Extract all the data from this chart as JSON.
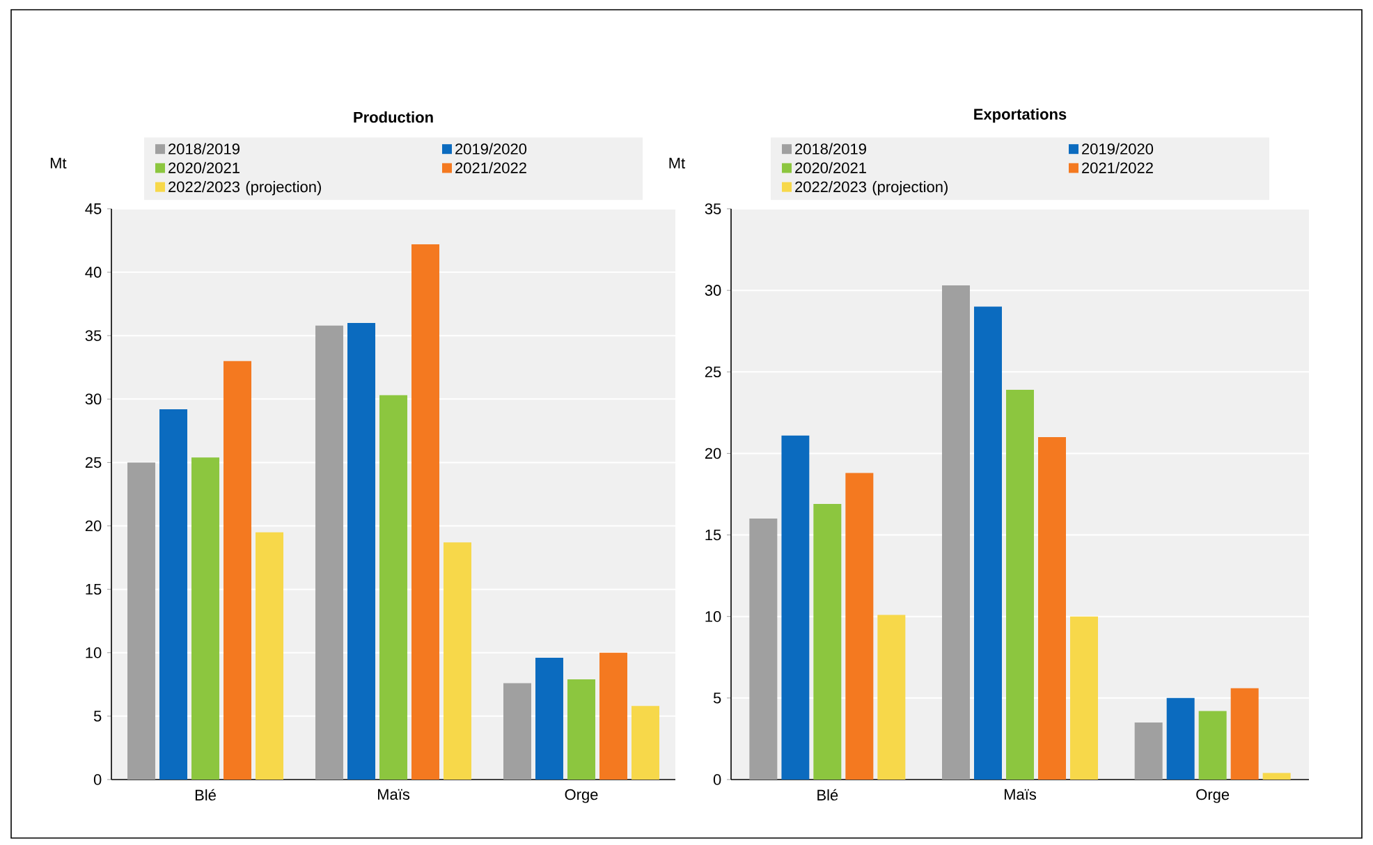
{
  "chart_data": [
    {
      "type": "bar",
      "title": "Production",
      "ylabel": "Mt",
      "categories": [
        "Blé",
        "Maïs",
        "Orge"
      ],
      "ylim": [
        0,
        45
      ],
      "yticks": [
        0,
        5,
        10,
        15,
        20,
        25,
        30,
        35,
        40,
        45
      ],
      "grid": "y",
      "legend": "top",
      "series": [
        {
          "name": "2018/2019",
          "color": "#a0a0a0",
          "values": [
            25,
            35.8,
            7.6
          ]
        },
        {
          "name": "2019/2020",
          "color": "#0b6bbf",
          "values": [
            29.2,
            36,
            9.6
          ]
        },
        {
          "name": "2020/2021",
          "color": "#8cc63f",
          "values": [
            25.4,
            30.3,
            7.9
          ]
        },
        {
          "name": "2021/2022",
          "color": "#f47920",
          "values": [
            33,
            42.2,
            10
          ]
        },
        {
          "name": "2022/2023 (projection)",
          "color": "#f7d84a",
          "values": [
            19.5,
            18.7,
            5.8
          ]
        }
      ]
    },
    {
      "type": "bar",
      "title": "Exportations",
      "ylabel": "Mt",
      "categories": [
        "Blé",
        "Maïs",
        "Orge"
      ],
      "ylim": [
        0,
        35
      ],
      "yticks": [
        0,
        5,
        10,
        15,
        20,
        25,
        30,
        35
      ],
      "grid": "y",
      "legend": "top",
      "series": [
        {
          "name": "2018/2019",
          "color": "#a0a0a0",
          "values": [
            16,
            30.3,
            3.5
          ]
        },
        {
          "name": "2019/2020",
          "color": "#0b6bbf",
          "values": [
            21.1,
            29,
            5
          ]
        },
        {
          "name": "2020/2021",
          "color": "#8cc63f",
          "values": [
            16.9,
            23.9,
            4.2
          ]
        },
        {
          "name": "2021/2022",
          "color": "#f47920",
          "values": [
            18.8,
            21,
            5.6
          ]
        },
        {
          "name": "2022/2023 (projection)",
          "color": "#f7d84a",
          "values": [
            10.1,
            10,
            0.4
          ]
        }
      ]
    }
  ]
}
